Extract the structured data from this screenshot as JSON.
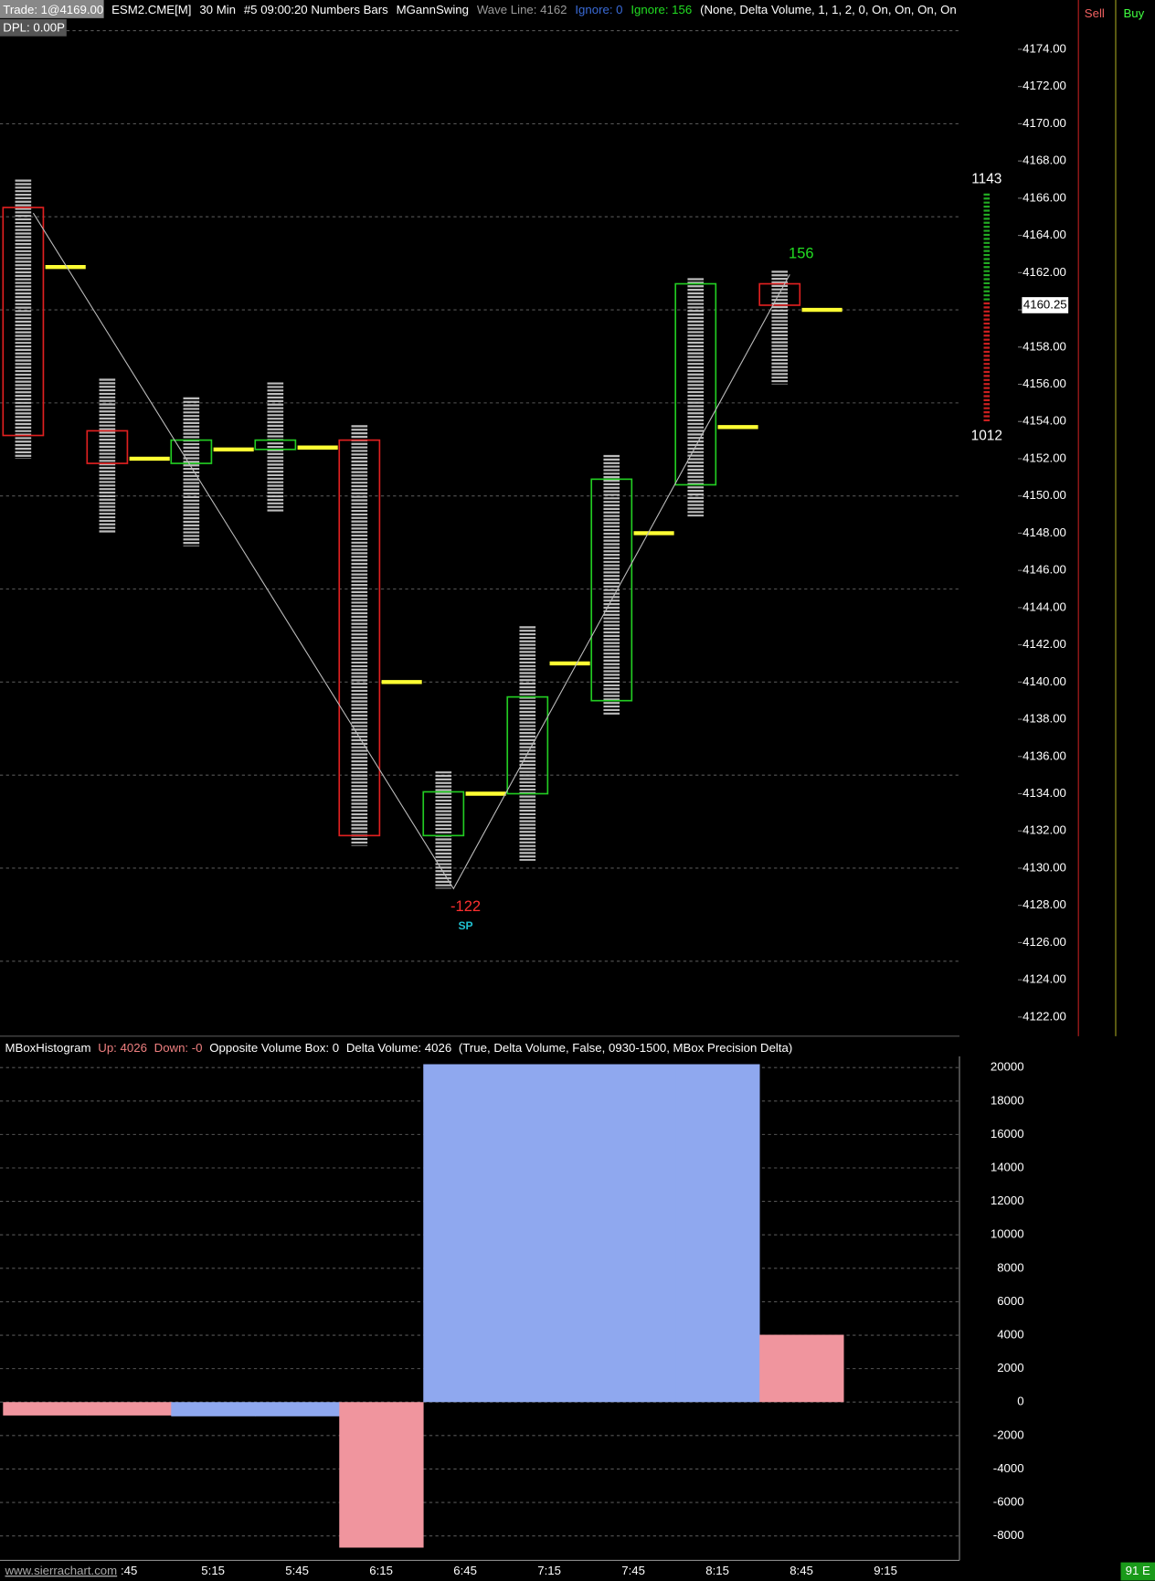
{
  "header": {
    "items": [
      {
        "text": "Trade: 1@4169.00",
        "color": "#ffffff"
      },
      {
        "text": "ESM2.CME[M]",
        "color": "#ffffff"
      },
      {
        "text": "30 Min",
        "color": "#ffffff"
      },
      {
        "text": "#5 09:00:20 Numbers Bars",
        "color": "#ffffff"
      },
      {
        "text": "MGannSwing",
        "color": "#ffffff"
      },
      {
        "text": "Wave Line: 4162",
        "color": "#9a9a9a"
      },
      {
        "text": "Ignore: 0",
        "color": "#3a6bd8"
      },
      {
        "text": "Ignore: 156",
        "color": "#22dd22"
      },
      {
        "text": "(None, Delta Volume, 1, 1, 2, 0, On, On, On, On",
        "color": "#ffffff"
      }
    ],
    "dpl": "DPL: 0.00P"
  },
  "chart_data": [
    {
      "type": "candlestick",
      "open": [
        4165.5,
        4153.5,
        4151.75,
        4152.5,
        4153,
        4131.75,
        4134,
        4139,
        4150.6,
        4161.4
      ],
      "high": [
        4167,
        4156.3,
        4155.3,
        4156.1,
        4153.8,
        4135.2,
        4143,
        4152.2,
        4161.7,
        4162.1
      ],
      "low": [
        4152,
        4148,
        4147.3,
        4149.1,
        4131.2,
        4128.9,
        4130.4,
        4138.2,
        4148.9,
        4156
      ],
      "close": [
        4153.25,
        4151.75,
        4153,
        4153,
        4131.75,
        4134.1,
        4139.2,
        4150.9,
        4161.4,
        4160.25
      ],
      "poc": [
        4162.3,
        4152,
        4152.5,
        4152.6,
        4140,
        4134,
        4141,
        4148,
        4153.7,
        4160
      ],
      "up_color": "#22cc22",
      "down_color": "#e02020",
      "poc_color": "#ffff33",
      "swing": {
        "bars": [
          0,
          5,
          9
        ],
        "values": [
          4165.2,
          4128.9,
          4161.9
        ],
        "color": "#bbbbbb"
      },
      "ylim": [
        4120.97,
        4176.65
      ],
      "yticks": [
        {
          "value": 4122,
          "label": "4122.00"
        },
        {
          "value": 4124,
          "label": "4124.00"
        },
        {
          "value": 4126,
          "label": "4126.00"
        },
        {
          "value": 4128,
          "label": "4128.00"
        },
        {
          "value": 4130,
          "label": "4130.00"
        },
        {
          "value": 4132,
          "label": "4132.00"
        },
        {
          "value": 4134,
          "label": "4134.00"
        },
        {
          "value": 4136,
          "label": "4136.00"
        },
        {
          "value": 4138,
          "label": "4138.00"
        },
        {
          "value": 4140,
          "label": "4140.00"
        },
        {
          "value": 4142,
          "label": "4142.00"
        },
        {
          "value": 4144,
          "label": "4144.00"
        },
        {
          "value": 4146,
          "label": "4146.00"
        },
        {
          "value": 4148,
          "label": "4148.00"
        },
        {
          "value": 4150,
          "label": "4150.00"
        },
        {
          "value": 4152,
          "label": "4152.00"
        },
        {
          "value": 4154,
          "label": "4154.00"
        },
        {
          "value": 4156,
          "label": "4156.00"
        },
        {
          "value": 4158,
          "label": "4158.00"
        },
        {
          "value": 4160,
          "label": "4160.00"
        },
        {
          "value": 4162,
          "label": "4162.00"
        },
        {
          "value": 4164,
          "label": "4164.00"
        },
        {
          "value": 4166,
          "label": "4166.00"
        },
        {
          "value": 4168,
          "label": "4168.00"
        },
        {
          "value": 4170,
          "label": "4170.00"
        },
        {
          "value": 4172,
          "label": "4172.00"
        },
        {
          "value": 4174,
          "label": "4174.00"
        }
      ],
      "grid_lines": [
        4125,
        4130,
        4135,
        4140,
        4145,
        4150,
        4155,
        4160,
        4165,
        4170,
        4175
      ],
      "last_price": {
        "value": 4160.25,
        "label": "4160.25"
      },
      "annotations": {
        "upper": 1143,
        "lower": 1012,
        "high_delta": 156,
        "low_delta": -122,
        "swing_label": "SP"
      },
      "xticks": [
        ":45",
        "5:15",
        "5:45",
        "6:15",
        "6:45",
        "7:15",
        "7:45",
        "8:15",
        "8:45",
        "9:15"
      ]
    },
    {
      "type": "bar",
      "title": [
        {
          "text": "MBoxHistogram",
          "color": "#ffffff"
        },
        {
          "text": "Up: 4026",
          "color": "#f08080"
        },
        {
          "text": "Down: -0",
          "color": "#f08080"
        },
        {
          "text": "Opposite Volume Box: 0",
          "color": "#ffffff"
        },
        {
          "text": "Delta Volume: 4026",
          "color": "#ffffff"
        },
        {
          "text": "(True, Delta Volume, False, 0930-1500, MBox Precision Delta)",
          "color": "#ffffff"
        }
      ],
      "values": [
        -800,
        -800,
        -850,
        -850,
        -8700,
        20200,
        20200,
        20200,
        20200,
        4026
      ],
      "colors": [
        "#f0959e",
        "#f0959e",
        "#8fa8ef",
        "#8fa8ef",
        "#f0959e",
        "#8fa8ef",
        "#8fa8ef",
        "#8fa8ef",
        "#8fa8ef",
        "#f0959e"
      ],
      "ylim": [
        -9460,
        20670
      ],
      "yticks": [
        -8000,
        -6000,
        -4000,
        -2000,
        0,
        2000,
        4000,
        6000,
        8000,
        10000,
        12000,
        14000,
        16000,
        18000,
        20000
      ],
      "grid": true
    }
  ],
  "side": {
    "sell": "Sell",
    "buy": "Buy",
    "status": "91 E"
  },
  "watermark": "www.sierrachart.com"
}
